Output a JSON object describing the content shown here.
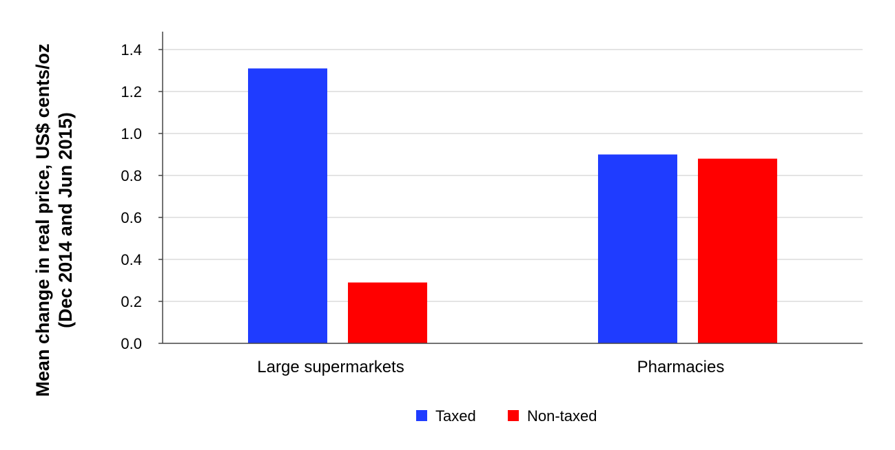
{
  "chart_data": {
    "type": "bar",
    "categories": [
      "Large supermarkets",
      "Pharmacies"
    ],
    "series": [
      {
        "name": "Taxed",
        "color": "#1f3cff",
        "values": [
          1.31,
          0.9
        ]
      },
      {
        "name": "Non-taxed",
        "color": "#ff0000",
        "values": [
          0.29,
          0.88
        ]
      }
    ],
    "ylabel_lines": [
      "Mean change in real price, US$ cents/oz",
      "(Dec 2014 and Jun 2015)"
    ],
    "xlabel": "",
    "ylim": [
      0,
      1.4
    ],
    "yticks": [
      "0.0",
      "0.2",
      "0.4",
      "0.6",
      "0.8",
      "1.0",
      "1.2",
      "1.4"
    ],
    "grid": true,
    "grid_color": "#c8c8c8",
    "legend_position": "bottom-center"
  }
}
